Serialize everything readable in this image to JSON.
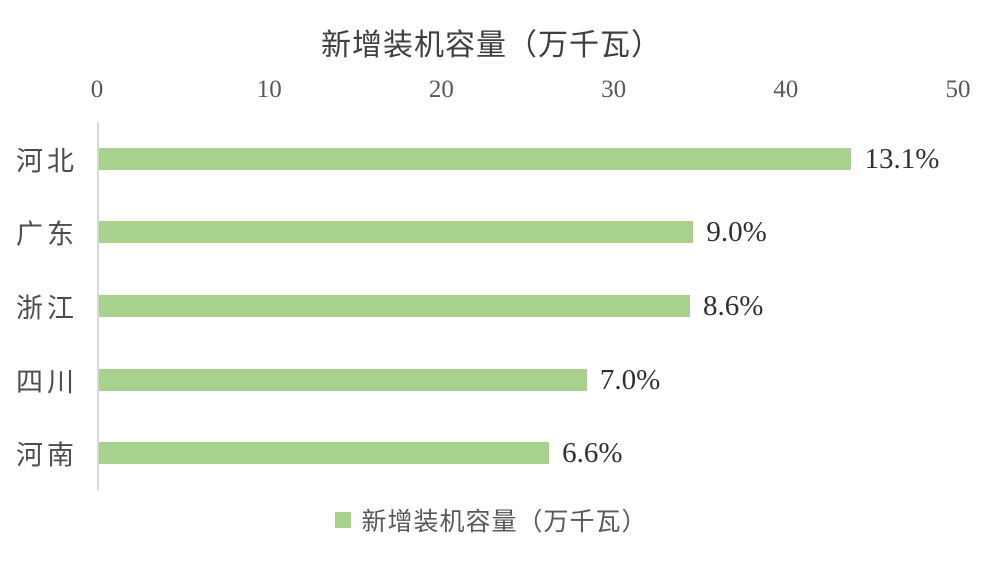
{
  "chart_data": {
    "type": "bar",
    "orientation": "horizontal",
    "title": "新增装机容量（万千瓦）",
    "categories": [
      "河北",
      "广东",
      "浙江",
      "四川",
      "河南"
    ],
    "values": [
      43.8,
      34.6,
      34.4,
      28.4,
      26.2
    ],
    "data_labels": [
      "13.1%",
      "9.0%",
      "8.6%",
      "7.0%",
      "6.6%"
    ],
    "xlim": [
      0,
      50
    ],
    "x_ticks": [
      0,
      10,
      20,
      30,
      40,
      50
    ],
    "grid": false,
    "legend_position": "bottom",
    "bar_color": "#a9d18e"
  },
  "legend": {
    "label": "新增装机容量（万千瓦）"
  },
  "colors": {
    "bar": "#a9d18e",
    "title_text": "#3f3f3f",
    "tick_text": "#595959",
    "category_text": "#4d4d4d",
    "data_label_text": "#303030",
    "axis_line": "#d9d9d9",
    "background": "#ffffff"
  }
}
